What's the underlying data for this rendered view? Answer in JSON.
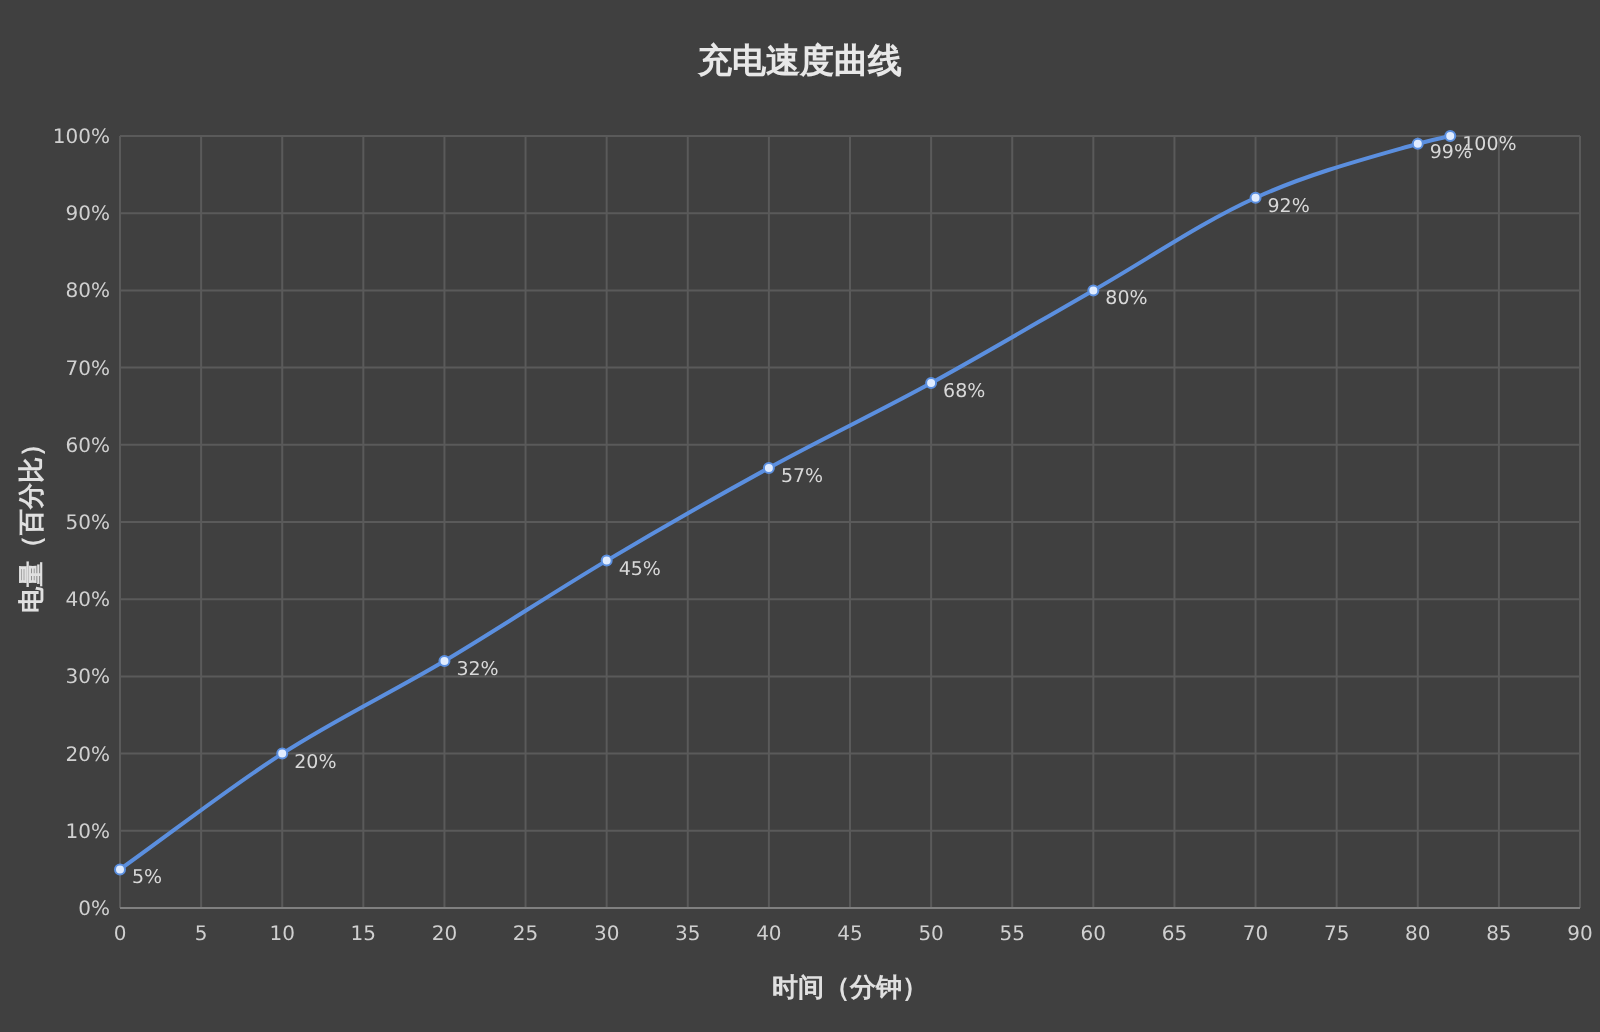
{
  "chart_data": {
    "type": "line",
    "title": "充电速度曲线",
    "xlabel": "时间（分钟）",
    "ylabel": "电量（百分比）",
    "x": [
      0,
      10,
      20,
      30,
      40,
      50,
      60,
      70,
      80,
      82
    ],
    "series": [
      {
        "color": "#5b8fdf",
        "values": [
          5,
          20,
          32,
          45,
          57,
          68,
          80,
          92,
          99,
          100
        ],
        "value_labels": [
          "5%",
          "20%",
          "32%",
          "45%",
          "57%",
          "68%",
          "80%",
          "92%",
          "99%",
          "100%"
        ]
      }
    ],
    "xlim": [
      0,
      90
    ],
    "xticks": [
      0,
      5,
      10,
      15,
      20,
      25,
      30,
      35,
      40,
      45,
      50,
      55,
      60,
      65,
      70,
      75,
      80,
      85,
      90
    ],
    "ylim": [
      0,
      100
    ],
    "yticks": [
      {
        "value": 0,
        "label": "0%"
      },
      {
        "value": 10,
        "label": "10%"
      },
      {
        "value": 20,
        "label": "20%"
      },
      {
        "value": 30,
        "label": "30%"
      },
      {
        "value": 40,
        "label": "40%"
      },
      {
        "value": 50,
        "label": "50%"
      },
      {
        "value": 60,
        "label": "60%"
      },
      {
        "value": 70,
        "label": "70%"
      },
      {
        "value": 80,
        "label": "80%"
      },
      {
        "value": 90,
        "label": "90%"
      },
      {
        "value": 100,
        "label": "100%"
      }
    ],
    "grid": true,
    "marker": "circle",
    "line_style": "solid"
  }
}
